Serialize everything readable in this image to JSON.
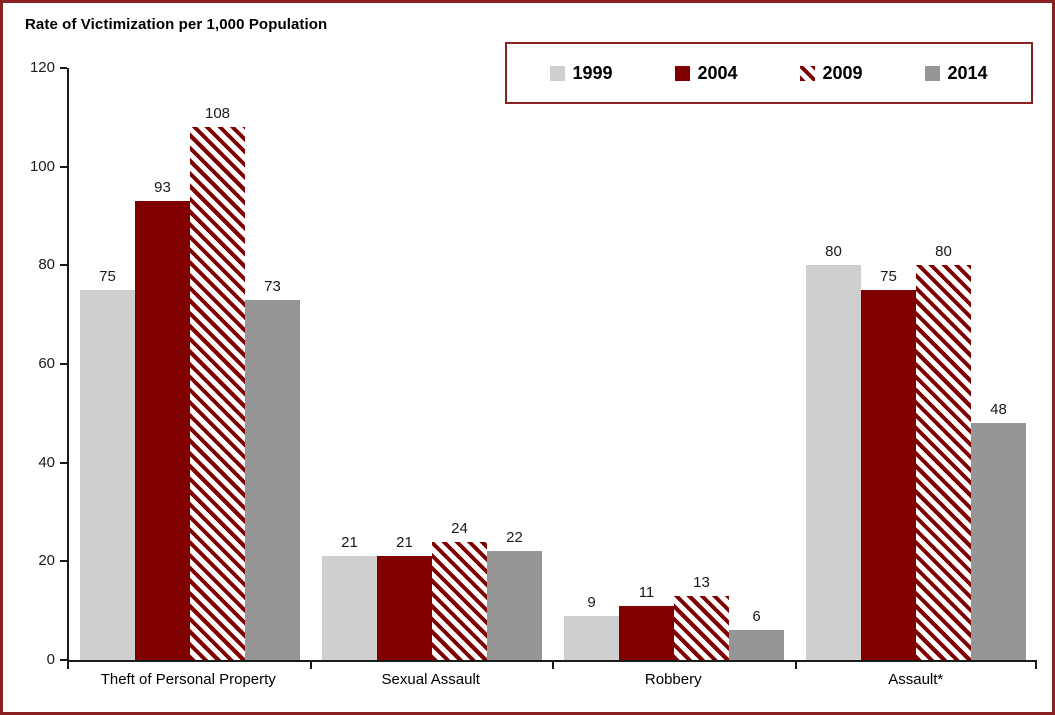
{
  "chart": {
    "frame_border_color": "#8B2222",
    "axis_color": "#1a1a1a",
    "background_color": "#ffffff"
  },
  "chart_data": {
    "type": "bar",
    "title": "Rate of Victimization per 1,000 Population",
    "categories": [
      "Theft of Personal Property",
      "Sexual Assault",
      "Robbery",
      "Assault*"
    ],
    "series": [
      {
        "name": "1999",
        "color": "#CFCFCF",
        "pattern": "solid",
        "values": [
          75,
          21,
          9,
          80
        ]
      },
      {
        "name": "2004",
        "color": "#800000",
        "pattern": "solid",
        "values": [
          93,
          21,
          11,
          75
        ]
      },
      {
        "name": "2009",
        "color": "#800000",
        "pattern": "diagonal-stripes",
        "values": [
          108,
          24,
          13,
          80
        ]
      },
      {
        "name": "2014",
        "color": "#969696",
        "pattern": "solid",
        "values": [
          73,
          22,
          6,
          48
        ]
      }
    ],
    "xlabel": "",
    "ylabel": "",
    "ylim": [
      0,
      120
    ],
    "yticks": [
      0,
      20,
      40,
      60,
      80,
      100,
      120
    ],
    "grid": false,
    "legend_position": "top-right",
    "bar_value_labels": true
  }
}
